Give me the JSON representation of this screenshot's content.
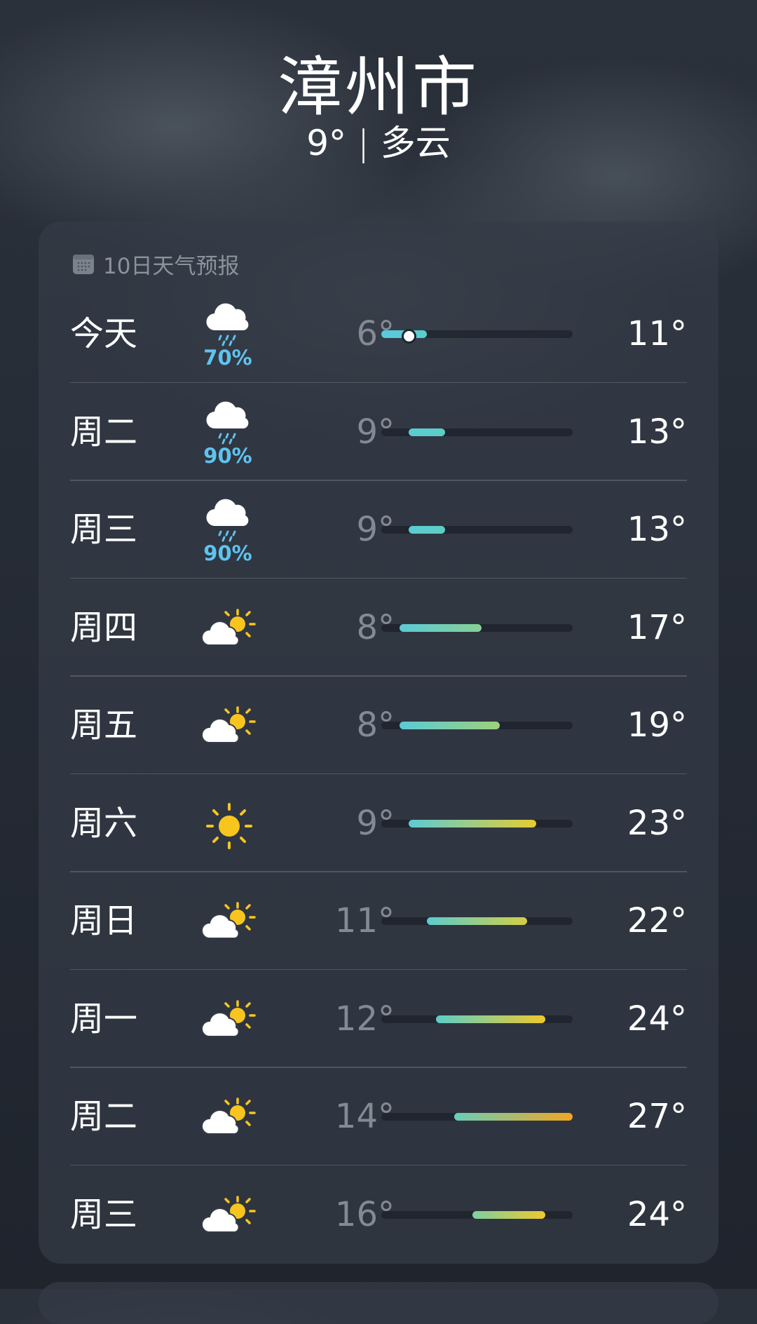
{
  "location": {
    "city": "漳州市",
    "current_temp": "9°",
    "separator": "|",
    "condition": "多云"
  },
  "forecast": {
    "title": "10日天气预报",
    "title_icon": "calendar-icon",
    "range_min": 6,
    "range_max": 27,
    "current_value": 9,
    "colors": {
      "cold": "#5ac8e0",
      "mild": "#9dd27a",
      "warm": "#f5c623",
      "hot": "#f39520",
      "precip": "#5fc3ef"
    },
    "days": [
      {
        "day": "今天",
        "icon": "rain-cloud",
        "precip": "70%",
        "low": "6°",
        "high": "11°",
        "low_v": 6,
        "high_v": 11,
        "current": true
      },
      {
        "day": "周二",
        "icon": "rain-cloud",
        "precip": "90%",
        "low": "9°",
        "high": "13°",
        "low_v": 9,
        "high_v": 13
      },
      {
        "day": "周三",
        "icon": "rain-cloud",
        "precip": "90%",
        "low": "9°",
        "high": "13°",
        "low_v": 9,
        "high_v": 13
      },
      {
        "day": "周四",
        "icon": "partly-sunny",
        "low": "8°",
        "high": "17°",
        "low_v": 8,
        "high_v": 17
      },
      {
        "day": "周五",
        "icon": "partly-sunny",
        "low": "8°",
        "high": "19°",
        "low_v": 8,
        "high_v": 19
      },
      {
        "day": "周六",
        "icon": "sunny",
        "low": "9°",
        "high": "23°",
        "low_v": 9,
        "high_v": 23
      },
      {
        "day": "周日",
        "icon": "partly-sunny",
        "low": "11°",
        "high": "22°",
        "low_v": 11,
        "high_v": 22
      },
      {
        "day": "周一",
        "icon": "partly-sunny",
        "low": "12°",
        "high": "24°",
        "low_v": 12,
        "high_v": 24
      },
      {
        "day": "周二",
        "icon": "partly-sunny",
        "low": "14°",
        "high": "27°",
        "low_v": 14,
        "high_v": 27
      },
      {
        "day": "周三",
        "icon": "partly-sunny",
        "low": "16°",
        "high": "24°",
        "low_v": 16,
        "high_v": 24
      }
    ]
  }
}
